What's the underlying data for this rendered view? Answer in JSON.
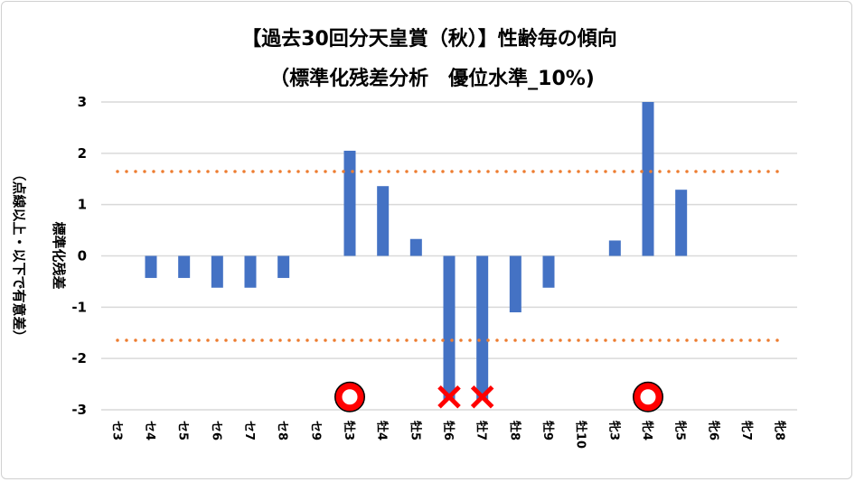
{
  "chart_data": {
    "type": "bar",
    "title": "【過去30回分天皇賞（秋）】性齢毎の傾向",
    "subtitle": "（標準化残差分析　優位水準_10%)",
    "ylabel": "標準化残差",
    "ylabel2": "（点線以上・以下で有意差）",
    "xlabel": "",
    "ylim": [
      -3,
      3
    ],
    "yticks": [
      "3",
      "2",
      "1",
      "0",
      "-1",
      "-2",
      "-3"
    ],
    "categories": [
      "セ3",
      "セ4",
      "セ5",
      "セ6",
      "セ7",
      "セ8",
      "セ9",
      "牡3",
      "牡4",
      "牡5",
      "牡6",
      "牡7",
      "牡8",
      "牡9",
      "牡10",
      "牝3",
      "牝4",
      "牝5",
      "牝6",
      "牝7",
      "牝8"
    ],
    "values": [
      0,
      -0.43,
      -0.43,
      -0.62,
      -0.62,
      -0.43,
      0,
      2.05,
      1.36,
      0.33,
      -2.8,
      -2.8,
      -1.1,
      -0.62,
      0,
      0.3,
      3.0,
      1.29,
      0,
      0,
      0
    ],
    "threshold_lines": [
      1.645,
      -1.645
    ],
    "markers": [
      {
        "category": "牡3",
        "symbol": "circle",
        "meaning": "positive"
      },
      {
        "category": "牡6",
        "symbol": "cross",
        "meaning": "negative"
      },
      {
        "category": "牡7",
        "symbol": "cross",
        "meaning": "negative"
      },
      {
        "category": "牝4",
        "symbol": "circle",
        "meaning": "positive"
      }
    ],
    "grid": true,
    "legend": "none",
    "colors": {
      "bar": "#4472C4",
      "threshold": "#ED7D31",
      "marker": "#FF0000",
      "grid": "#D9D9D9"
    }
  }
}
